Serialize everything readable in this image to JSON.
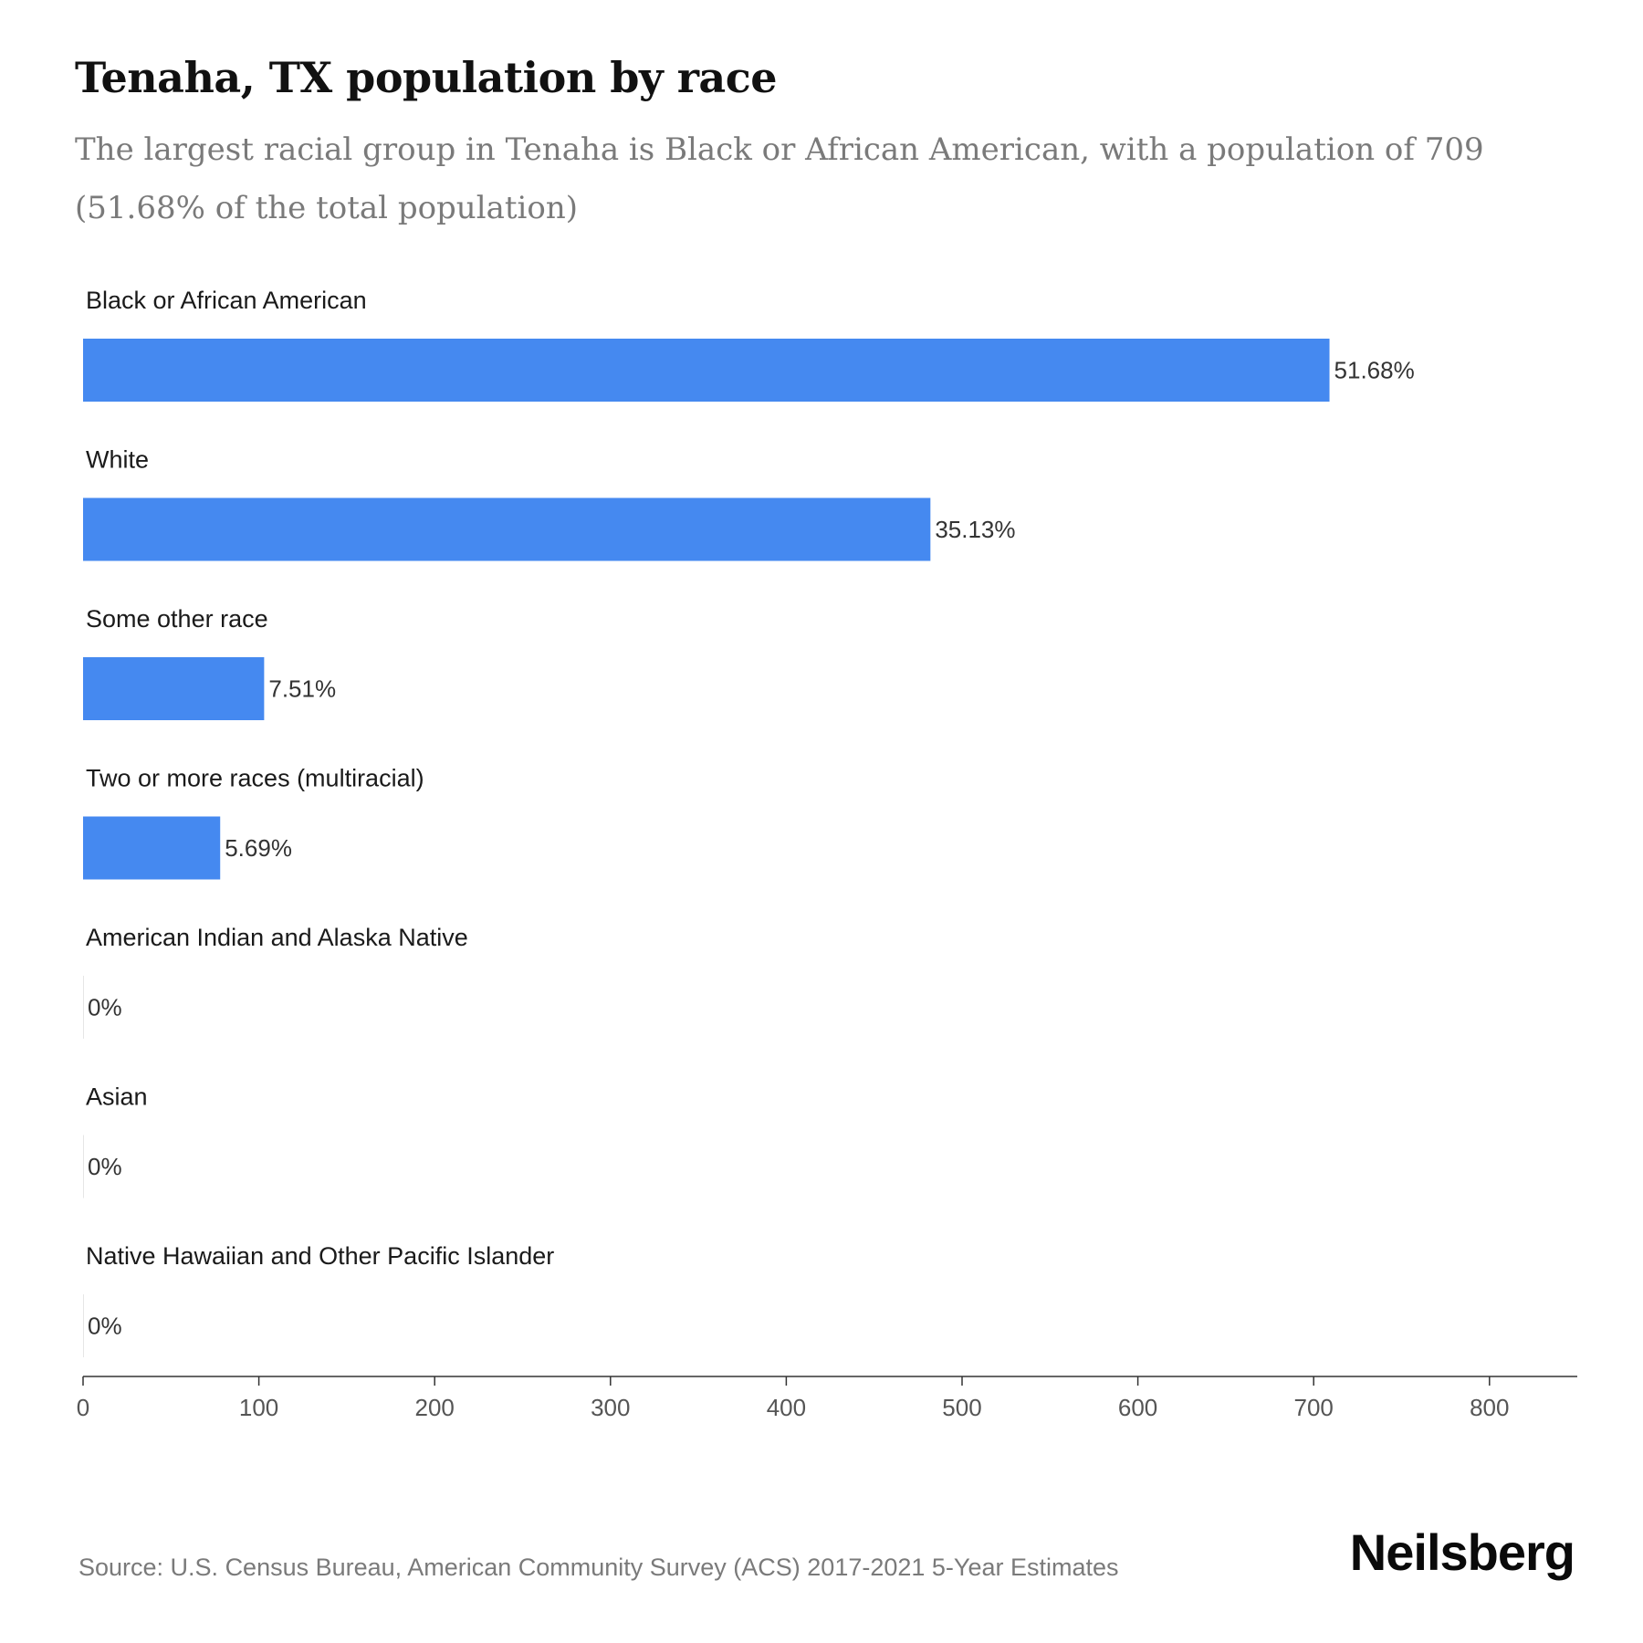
{
  "header": {
    "title": "Tenaha, TX population by race",
    "subtitle": "The largest racial group in Tenaha is Black or African American, with a population of 709 (51.68% of the total population)"
  },
  "chart_data": {
    "type": "bar",
    "orientation": "horizontal",
    "categories": [
      "Black or African American",
      "White",
      "Some other race",
      "Two or more races (multiracial)",
      "American Indian and Alaska Native",
      "Asian",
      "Native Hawaiian and Other Pacific Islander"
    ],
    "values": [
      709,
      482,
      103,
      78,
      0,
      0,
      0
    ],
    "value_labels": [
      "51.68%",
      "35.13%",
      "7.51%",
      "5.69%",
      "0%",
      "0%",
      "0%"
    ],
    "xticks": [
      0,
      100,
      200,
      300,
      400,
      500,
      600,
      700,
      800
    ],
    "xlim": [
      0,
      850
    ],
    "grid": false,
    "bar_color": "#4589f0"
  },
  "footer": {
    "source": "Source: U.S. Census Bureau, American Community Survey (ACS) 2017-2021 5-Year Estimates",
    "brand": "Neilsberg"
  }
}
